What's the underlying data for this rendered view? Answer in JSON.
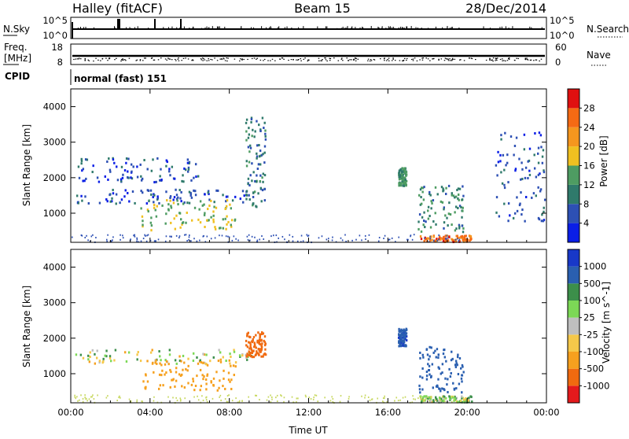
{
  "header": {
    "station": "Halley (fitACF)",
    "beam": "Beam 15",
    "date": "28/Dec/2014"
  },
  "strips": {
    "nsky_label": "N.Sky",
    "nsky_ticks": [
      "10^5",
      "10^0"
    ],
    "nsearch_label": "N.Search",
    "nsearch_ticks": [
      "10^5",
      "10^0"
    ],
    "freq_label_1": "Freq.",
    "freq_label_2": "[MHz]",
    "freq_ticks": [
      "18",
      "8"
    ],
    "nave_label": "Nave",
    "nave_ticks": [
      "60",
      "0"
    ],
    "cpid_label": "CPID",
    "cpid_text": "normal (fast) 151"
  },
  "colors": {
    "power_scale": [
      "#0a1ee6",
      "#2d50b4",
      "#2f7a6b",
      "#4e9c62",
      "#f0c020",
      "#f5961e",
      "#f56a14",
      "#e01010"
    ],
    "velocity_scale": [
      "#e41a1c",
      "#f06a10",
      "#f6a01e",
      "#f5c84a",
      "#bfbfbf",
      "#7cd856",
      "#3c8f4a",
      "#2a5fb0",
      "#1838c8"
    ]
  },
  "chart_data": [
    {
      "type": "heatmap",
      "name": "power-panel",
      "xlabel": "",
      "ylabel": "Slant Range [km]",
      "xlim": [
        0,
        24
      ],
      "ylim": [
        180,
        4500
      ],
      "x_ticks": [
        "00:00",
        "04:00",
        "08:00",
        "12:00",
        "16:00",
        "20:00",
        "00:00"
      ],
      "y_ticks": [
        1000,
        2000,
        3000,
        4000
      ],
      "colorbar": {
        "label": "Power [dB]",
        "ticks": [
          "28",
          "24",
          "20",
          "16",
          "12",
          "8",
          "4"
        ],
        "range": [
          0,
          32
        ]
      },
      "features": [
        {
          "name": "morning-band-1500km",
          "time_range": [
            0.2,
            9.2
          ],
          "range_km": [
            1300,
            1700
          ],
          "value_dB": 6
        },
        {
          "name": "morning-patches-2000-2500km",
          "time_range": [
            0.3,
            6.5
          ],
          "range_km": [
            1900,
            2600
          ],
          "value_dB": 6
        },
        {
          "name": "dawn-enhancement",
          "time_range": [
            3.5,
            8.3
          ],
          "range_km": [
            550,
            1400
          ],
          "value_dB": 16
        },
        {
          "name": "pre-noon-plume",
          "time_range": [
            8.8,
            9.8
          ],
          "range_km": [
            1200,
            3800
          ],
          "value_dB": 9
        },
        {
          "name": "afternoon-patch",
          "time_range": [
            16.5,
            16.9
          ],
          "range_km": [
            1800,
            2300
          ],
          "value_dB": 12
        },
        {
          "name": "evening-streak",
          "time_range": [
            17.5,
            19.8
          ],
          "range_km": [
            500,
            1800
          ],
          "value_dB": 11
        },
        {
          "name": "near-range-echo",
          "time_range": [
            17.6,
            20.2
          ],
          "range_km": [
            220,
            400
          ],
          "value_dB": 25
        },
        {
          "name": "late-evening-band",
          "time_range": [
            21.4,
            23.9
          ],
          "range_km": [
            800,
            3300
          ],
          "value_dB": 6
        }
      ]
    },
    {
      "type": "heatmap",
      "name": "velocity-panel",
      "xlabel": "Time UT",
      "ylabel": "Slant Range [km]",
      "xlim": [
        0,
        24
      ],
      "ylim": [
        180,
        4500
      ],
      "x_ticks": [
        "00:00",
        "04:00",
        "08:00",
        "12:00",
        "16:00",
        "20:00",
        "00:00"
      ],
      "y_ticks": [
        1000,
        2000,
        3000,
        4000
      ],
      "colorbar": {
        "label": "Velocity [m s^-1]",
        "ticks": [
          "1000",
          "500",
          "100",
          "25",
          "-25",
          "-100",
          "-500",
          "-1000"
        ]
      },
      "features": [
        {
          "name": "morning-band-ground-scatter",
          "time_range": [
            0.2,
            9.2
          ],
          "range_km": [
            1300,
            1700
          ],
          "velocity": 0
        },
        {
          "name": "dawn-flow-away",
          "time_range": [
            3.5,
            8.3
          ],
          "range_km": [
            550,
            1400
          ],
          "velocity": -300
        },
        {
          "name": "pre-noon-strong-away",
          "time_range": [
            8.8,
            9.8
          ],
          "range_km": [
            1500,
            2200
          ],
          "velocity": -800
        },
        {
          "name": "afternoon-toward",
          "time_range": [
            16.5,
            16.9
          ],
          "range_km": [
            1800,
            2300
          ],
          "velocity": 900
        },
        {
          "name": "evening-toward",
          "time_range": [
            17.5,
            19.8
          ],
          "range_km": [
            500,
            1800
          ],
          "velocity": 800
        },
        {
          "name": "near-range-low-velocity",
          "time_range": [
            17.6,
            20.2
          ],
          "range_km": [
            220,
            400
          ],
          "velocity": 60
        }
      ]
    }
  ]
}
